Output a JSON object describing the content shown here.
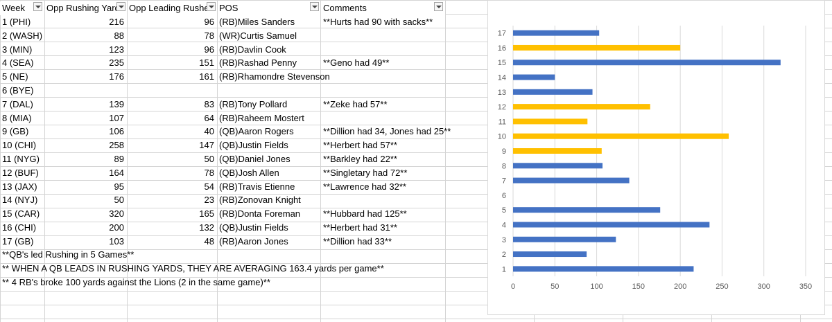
{
  "headers": {
    "week": "Week",
    "yards": "Opp Rushing Yard",
    "leading": "Opp Leading Rushe",
    "pos": "POS",
    "comments": "Comments"
  },
  "rows": [
    {
      "week": "1 (PHI)",
      "yards": "216",
      "leading": "96",
      "pos": "(RB)Miles Sanders",
      "comment": "**Hurts had 90 with sacks**"
    },
    {
      "week": "2 (WASH)",
      "yards": "88",
      "leading": "78",
      "pos": "(WR)Curtis Samuel",
      "comment": ""
    },
    {
      "week": "3 (MIN)",
      "yards": "123",
      "leading": "96",
      "pos": "(RB)Davlin Cook",
      "comment": ""
    },
    {
      "week": "4 (SEA)",
      "yards": "235",
      "leading": "151",
      "pos": "(RB)Rashad Penny",
      "comment": "**Geno had 49**"
    },
    {
      "week": "5 (NE)",
      "yards": "176",
      "leading": "161",
      "pos": "(RB)Rhamondre Stevenson",
      "comment": ""
    },
    {
      "week": "6 (BYE)",
      "yards": "",
      "leading": "",
      "pos": "",
      "comment": ""
    },
    {
      "week": "7 (DAL)",
      "yards": "139",
      "leading": "83",
      "pos": "(RB)Tony Pollard",
      "comment": "**Zeke had 57**"
    },
    {
      "week": "8 (MIA)",
      "yards": "107",
      "leading": "64",
      "pos": "(RB)Raheem Mostert",
      "comment": ""
    },
    {
      "week": "9 (GB)",
      "yards": "106",
      "leading": "40",
      "pos": "(QB)Aaron Rogers",
      "comment": "**Dillion had 34, Jones had 25**"
    },
    {
      "week": "10 (CHI)",
      "yards": "258",
      "leading": "147",
      "pos": "(QB)Justin Fields",
      "comment": "**Herbert had 57**"
    },
    {
      "week": "11 (NYG)",
      "yards": "89",
      "leading": "50",
      "pos": "(QB)Daniel Jones",
      "comment": "**Barkley had 22**"
    },
    {
      "week": "12 (BUF)",
      "yards": "164",
      "leading": "78",
      "pos": "(QB)Josh Allen",
      "comment": "**Singletary had 72**"
    },
    {
      "week": "13 (JAX)",
      "yards": "95",
      "leading": "54",
      "pos": "(RB)Travis Etienne",
      "comment": "**Lawrence had 32**"
    },
    {
      "week": "14 (NYJ)",
      "yards": "50",
      "leading": "23",
      "pos": "(RB)Zonovan Knight",
      "comment": ""
    },
    {
      "week": "15 (CAR)",
      "yards": "320",
      "leading": "165",
      "pos": "(RB)Donta Foreman",
      "comment": "**Hubbard had 125**"
    },
    {
      "week": "16 (CHI)",
      "yards": "200",
      "leading": "132",
      "pos": "(QB)Justin Fields",
      "comment": "**Herbert had 31**"
    },
    {
      "week": "17 (GB)",
      "yards": "103",
      "leading": "48",
      "pos": "(RB)Aaron Jones",
      "comment": "**Dillion had 33**"
    }
  ],
  "notes": [
    "**QB's led Rushing in 5 Games**",
    "** WHEN A QB LEADS IN RUSHING YARDS, THEY ARE AVERAGING 163.4 yards per game**",
    "** 4 RB's broke 100 yards against the Lions (2 in the same game)**"
  ],
  "colors": {
    "rb": "#4472c4",
    "qb": "#ffc000"
  },
  "chart_data": {
    "type": "bar",
    "orientation": "horizontal",
    "categories": [
      "1",
      "2",
      "3",
      "4",
      "5",
      "6",
      "7",
      "8",
      "9",
      "10",
      "11",
      "12",
      "13",
      "14",
      "15",
      "16",
      "17"
    ],
    "values": [
      216,
      88,
      123,
      235,
      176,
      0,
      139,
      107,
      106,
      258,
      89,
      164,
      95,
      50,
      320,
      200,
      103
    ],
    "bar_colors": [
      "#4472c4",
      "#4472c4",
      "#4472c4",
      "#4472c4",
      "#4472c4",
      "#4472c4",
      "#4472c4",
      "#4472c4",
      "#ffc000",
      "#ffc000",
      "#ffc000",
      "#ffc000",
      "#4472c4",
      "#4472c4",
      "#4472c4",
      "#ffc000",
      "#4472c4"
    ],
    "xticks": [
      "0",
      "50",
      "100",
      "150",
      "200",
      "250",
      "300",
      "350"
    ],
    "xlim": [
      0,
      350
    ],
    "grid": true
  }
}
